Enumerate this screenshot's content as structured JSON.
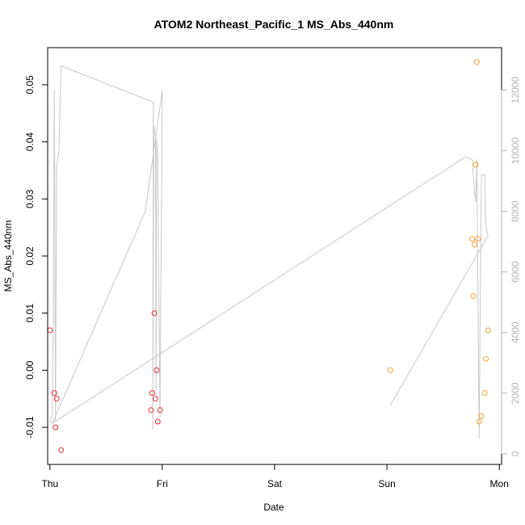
{
  "chart_data": {
    "type": "scatter",
    "title": "ATOM2 Northeast_Pacific_1 MS_Abs_440nm",
    "xlabel": "Date",
    "ylabel": "MS_Abs_440nm",
    "x_ticks": [
      "Thu",
      "Fri",
      "Sat",
      "Sun",
      "Mon"
    ],
    "xlim": [
      -0.02,
      4.02
    ],
    "ylim": [
      -0.0165,
      0.0565
    ],
    "y_ticks": [
      -0.01,
      0.0,
      0.01,
      0.02,
      0.03,
      0.04,
      0.05
    ],
    "y_tick_labels": [
      "-0.01",
      "0.00",
      "0.01",
      "0.02",
      "0.03",
      "0.04",
      "0.05"
    ],
    "y2lim": [
      -350,
      13400
    ],
    "y2_ticks": [
      0,
      2000,
      4000,
      6000,
      8000,
      10000,
      12000
    ],
    "y2_tick_labels": [
      "0",
      "2000",
      "4000",
      "6000",
      "8000",
      "10000",
      "12000"
    ],
    "series": [
      {
        "color": "#e8303a",
        "marker": "open-circle",
        "points": [
          [
            0.0,
            0.007
          ],
          [
            0.04,
            -0.004
          ],
          [
            0.05,
            -0.01
          ],
          [
            0.06,
            -0.005
          ],
          [
            0.1,
            -0.014
          ],
          [
            0.9,
            -0.007
          ],
          [
            0.91,
            -0.004
          ],
          [
            0.93,
            0.01
          ],
          [
            0.94,
            -0.005
          ],
          [
            0.95,
            0.0
          ],
          [
            0.96,
            -0.009
          ],
          [
            0.98,
            -0.007
          ]
        ]
      },
      {
        "color": "#f5a030",
        "marker": "open-circle",
        "points": [
          [
            3.03,
            0.0
          ],
          [
            3.76,
            0.023
          ],
          [
            3.77,
            0.013
          ],
          [
            3.78,
            0.022
          ],
          [
            3.79,
            0.036
          ],
          [
            3.8,
            0.054
          ],
          [
            3.81,
            0.023
          ],
          [
            3.82,
            -0.009
          ],
          [
            3.84,
            -0.008
          ],
          [
            3.87,
            -0.004
          ],
          [
            3.88,
            0.002
          ],
          [
            3.9,
            0.007
          ]
        ]
      },
      {
        "color": "#c8c8c8",
        "style": "line",
        "axis": "right",
        "points": [
          [
            0.0,
            1000
          ],
          [
            0.02,
            1300
          ],
          [
            0.03,
            4500
          ],
          [
            0.04,
            12000
          ],
          [
            0.05,
            1100
          ],
          [
            0.06,
            9500
          ],
          [
            0.08,
            10000
          ],
          [
            0.1,
            12800
          ],
          [
            0.92,
            11600
          ],
          [
            0.915,
            800
          ],
          [
            0.925,
            10800
          ],
          [
            0.94,
            10500
          ],
          [
            0.945,
            1900
          ],
          [
            0.95,
            10400
          ],
          [
            0.96,
            9800
          ],
          [
            0.98,
            1200
          ],
          [
            1.0,
            12000
          ],
          [
            0.85,
            8000
          ],
          [
            0.02,
            1000
          ],
          [
            3.7,
            9800
          ],
          [
            3.76,
            9700
          ],
          [
            3.78,
            8600
          ],
          [
            3.79,
            8300
          ],
          [
            3.8,
            9700
          ],
          [
            3.82,
            500
          ],
          [
            3.84,
            9200
          ],
          [
            3.87,
            9200
          ],
          [
            3.88,
            7500
          ],
          [
            3.9,
            7200
          ],
          [
            3.03,
            1600
          ]
        ]
      }
    ]
  }
}
